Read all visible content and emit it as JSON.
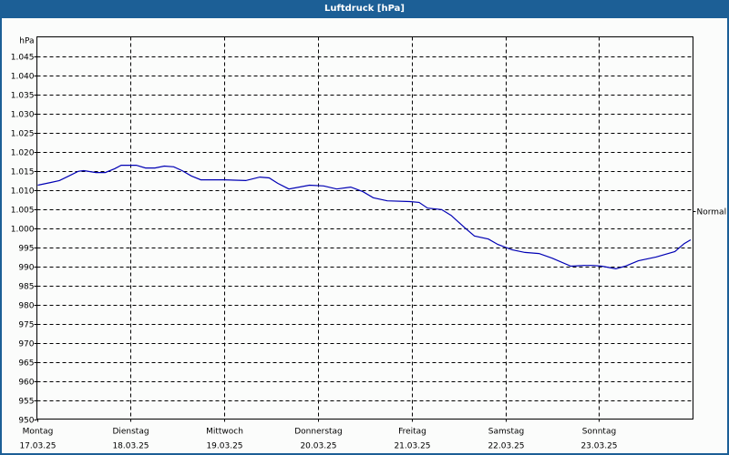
{
  "window": {
    "title": "Luftdruck [hPa]",
    "title_bar_color": "#1c5f96"
  },
  "chart_data": {
    "type": "line",
    "title": "Luftdruck [hPa]",
    "xlabel": "",
    "ylabel": "hPa",
    "ylim": [
      950,
      1050
    ],
    "grid": true,
    "y_ticks": [
      950,
      955,
      960,
      965,
      970,
      975,
      980,
      985,
      990,
      995,
      1000,
      1005,
      1010,
      1015,
      1020,
      1025,
      1030,
      1035,
      1040,
      1045
    ],
    "y_tick_labels": [
      "950",
      "955",
      "960",
      "965",
      "970",
      "975",
      "980",
      "985",
      "990",
      "995",
      "1.000",
      "1.005",
      "1.010",
      "1.015",
      "1.020",
      "1.025",
      "1.030",
      "1.035",
      "1.040",
      "1.045"
    ],
    "x_ticks": [
      {
        "day": "Montag",
        "date": "17.03.25"
      },
      {
        "day": "Dienstag",
        "date": "18.03.25"
      },
      {
        "day": "Mittwoch",
        "date": "19.03.25"
      },
      {
        "day": "Donnerstag",
        "date": "20.03.25"
      },
      {
        "day": "Freitag",
        "date": "21.03.25"
      },
      {
        "day": "Samstag",
        "date": "22.03.25"
      },
      {
        "day": "Sonntag",
        "date": "23.03.25"
      }
    ],
    "reference_line": {
      "label": "Normal",
      "value": 1004.5
    },
    "series": [
      {
        "name": "Luftdruck",
        "color": "#0000b4",
        "x_days": [
          0.01,
          0.15,
          0.24,
          0.34,
          0.44,
          0.5,
          0.63,
          0.73,
          0.83,
          0.9,
          1.06,
          1.16,
          1.26,
          1.36,
          1.46,
          1.55,
          1.65,
          1.75,
          2.0,
          2.23,
          2.38,
          2.48,
          2.57,
          2.69,
          2.91,
          3.06,
          3.2,
          3.35,
          3.48,
          3.59,
          3.74,
          3.98,
          4.08,
          4.17,
          4.32,
          4.42,
          4.57,
          4.67,
          4.82,
          4.92,
          5.07,
          5.21,
          5.36,
          5.5,
          5.7,
          5.84,
          5.94,
          6.03,
          6.18,
          6.28,
          6.42,
          6.61,
          6.81,
          6.91,
          6.98
        ],
        "values": [
          1011.2,
          1011.9,
          1012.4,
          1013.6,
          1014.8,
          1015.0,
          1014.5,
          1014.5,
          1015.5,
          1016.4,
          1016.4,
          1015.7,
          1015.7,
          1016.2,
          1016.0,
          1015.0,
          1013.6,
          1012.6,
          1012.6,
          1012.4,
          1013.3,
          1013.1,
          1011.7,
          1010.2,
          1011.2,
          1011.0,
          1010.2,
          1010.7,
          1009.5,
          1007.9,
          1007.1,
          1006.9,
          1006.7,
          1005.2,
          1004.8,
          1003.3,
          1000.0,
          997.9,
          997.1,
          995.7,
          994.3,
          993.6,
          993.3,
          992.1,
          990.0,
          990.2,
          990.2,
          990.0,
          989.3,
          990.0,
          991.4,
          992.4,
          993.8,
          995.9,
          996.9
        ]
      }
    ]
  }
}
